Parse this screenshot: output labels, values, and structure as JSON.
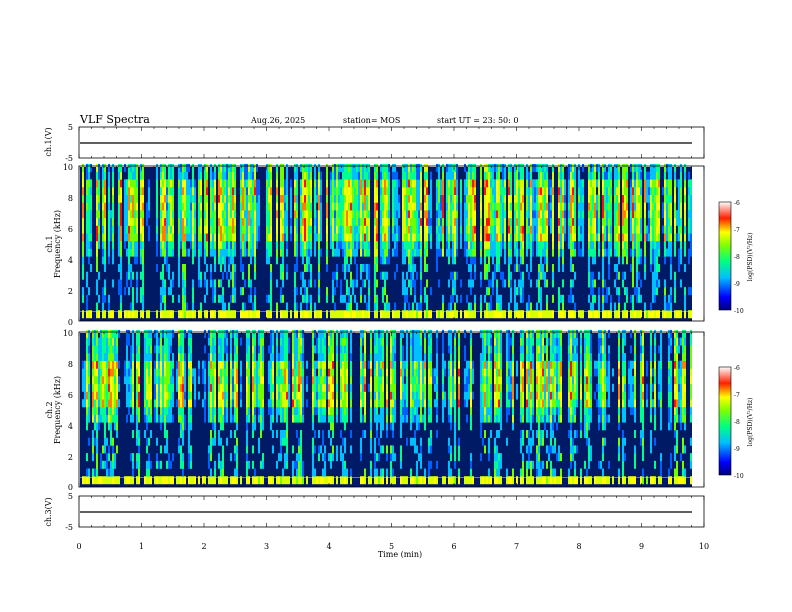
{
  "header": {
    "title": "VLF Spectra",
    "date": "Aug.26, 2025",
    "station": "station= MOS",
    "start_ut": "start  UT  =   23: 50: 0"
  },
  "chart_data": {
    "type": "heatmap",
    "title": "VLF Spectra",
    "xlabel": "Time  (min)",
    "xlim": [
      0,
      10
    ],
    "xticks": [
      "0",
      "1",
      "2",
      "3",
      "4",
      "5",
      "6",
      "7",
      "8",
      "9",
      "10"
    ],
    "panels": [
      {
        "name": "ch1-voltage",
        "type": "line",
        "ylabel": "ch.1(V)",
        "ylim": [
          -5,
          5
        ],
        "yticks": [
          "5",
          "-5"
        ],
        "trace_level": -2,
        "trace_end_min": 9.8
      },
      {
        "name": "ch1-spectrogram",
        "type": "heatmap",
        "ylabel_channel": "ch.1",
        "ylabel": "Frequency  (kHz)",
        "ylim": [
          0,
          10
        ],
        "yticks": [
          "0",
          "2",
          "4",
          "6",
          "8",
          "10"
        ],
        "data_end_min": 9.8,
        "peak_band_khz": [
          5,
          9
        ],
        "colorbar": {
          "label": "log(PSD)(V²/Hz)",
          "range": [
            -10,
            -6
          ],
          "ticks": [
            "-6",
            "-7",
            "-8",
            "-9",
            "-10"
          ]
        }
      },
      {
        "name": "ch2-spectrogram",
        "type": "heatmap",
        "ylabel_channel": "ch.2",
        "ylabel": "Frequency  (kHz)",
        "ylim": [
          0,
          10
        ],
        "yticks": [
          "0",
          "2",
          "4",
          "6",
          "8",
          "10"
        ],
        "data_end_min": 9.8,
        "peak_band_khz": [
          5,
          8
        ],
        "colorbar": {
          "label": "log(PSD)(V²/Hz)",
          "range": [
            -10,
            -6
          ],
          "ticks": [
            "-6",
            "-7",
            "-8",
            "-9",
            "-10"
          ]
        }
      },
      {
        "name": "ch3-voltage",
        "type": "line",
        "ylabel": "ch.3(V)",
        "ylim": [
          -5,
          5
        ],
        "yticks": [
          "5",
          "-5"
        ],
        "trace_level": -2,
        "trace_end_min": 9.8
      }
    ]
  }
}
